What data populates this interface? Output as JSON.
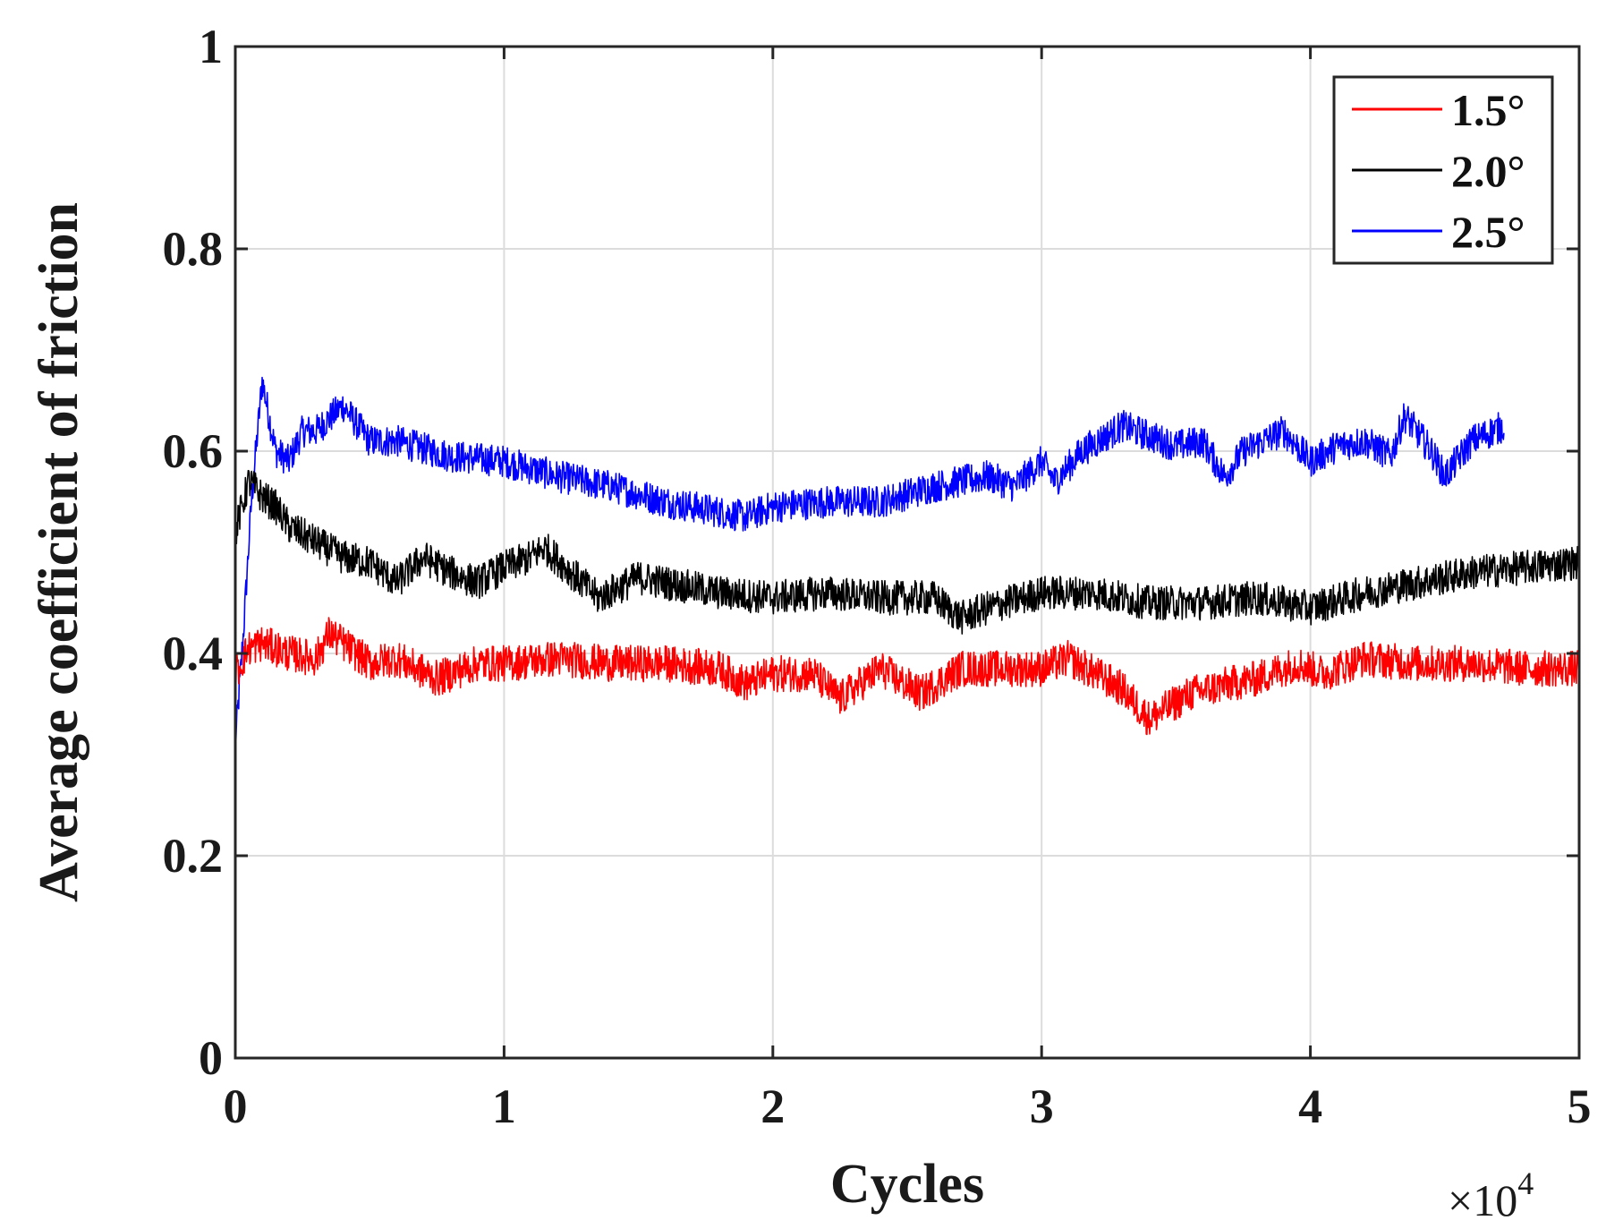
{
  "chart_data": {
    "type": "line",
    "xlabel": "Cycles",
    "ylabel": "Average coefficient of friction",
    "x_multiplier_label": "×10",
    "x_multiplier_exponent": "4",
    "xlim": [
      0,
      5
    ],
    "ylim": [
      0,
      1
    ],
    "x_ticks": [
      "0",
      "1",
      "2",
      "3",
      "4",
      "5"
    ],
    "y_ticks": [
      "0",
      "0.2",
      "0.4",
      "0.6",
      "0.8",
      "1"
    ],
    "grid": true,
    "legend_position": "top-right",
    "series": [
      {
        "name": "1.5°",
        "color": "#ff0000",
        "noise": 0.018,
        "x": [
          0,
          0.05,
          0.1,
          0.2,
          0.3,
          0.35,
          0.5,
          0.6,
          0.75,
          0.9,
          1.0,
          1.2,
          1.4,
          1.6,
          1.8,
          1.9,
          2.0,
          2.15,
          2.25,
          2.4,
          2.55,
          2.7,
          2.85,
          3.0,
          3.1,
          3.2,
          3.3,
          3.4,
          3.55,
          3.7,
          3.8,
          3.95,
          4.05,
          4.2,
          4.4,
          4.6,
          4.8,
          5.0
        ],
        "y": [
          0.38,
          0.405,
          0.41,
          0.4,
          0.395,
          0.42,
          0.39,
          0.395,
          0.375,
          0.39,
          0.39,
          0.395,
          0.39,
          0.39,
          0.385,
          0.37,
          0.38,
          0.38,
          0.355,
          0.385,
          0.36,
          0.385,
          0.385,
          0.385,
          0.395,
          0.38,
          0.365,
          0.335,
          0.36,
          0.37,
          0.375,
          0.39,
          0.38,
          0.395,
          0.39,
          0.39,
          0.385,
          0.385
        ]
      },
      {
        "name": "2.0°",
        "color": "#000000",
        "noise": 0.017,
        "x": [
          0,
          0.05,
          0.1,
          0.15,
          0.2,
          0.3,
          0.4,
          0.5,
          0.6,
          0.7,
          0.8,
          0.9,
          1.0,
          1.1,
          1.15,
          1.25,
          1.35,
          1.5,
          1.6,
          1.8,
          2.0,
          2.2,
          2.4,
          2.6,
          2.7,
          2.8,
          3.0,
          3.2,
          3.4,
          3.6,
          3.8,
          4.0,
          4.2,
          4.4,
          4.6,
          4.8,
          5.0
        ],
        "y": [
          0.52,
          0.57,
          0.555,
          0.545,
          0.525,
          0.51,
          0.495,
          0.49,
          0.47,
          0.495,
          0.48,
          0.47,
          0.485,
          0.495,
          0.505,
          0.48,
          0.455,
          0.475,
          0.47,
          0.46,
          0.455,
          0.46,
          0.455,
          0.455,
          0.435,
          0.445,
          0.46,
          0.46,
          0.45,
          0.45,
          0.455,
          0.445,
          0.46,
          0.47,
          0.48,
          0.485,
          0.49
        ]
      },
      {
        "name": "2.5°",
        "color": "#0000ff",
        "noise": 0.016,
        "x": [
          0,
          0.03,
          0.06,
          0.1,
          0.15,
          0.2,
          0.25,
          0.3,
          0.4,
          0.5,
          0.6,
          0.8,
          1.0,
          1.2,
          1.4,
          1.6,
          1.8,
          1.9,
          2.0,
          2.2,
          2.4,
          2.6,
          2.8,
          2.9,
          3.0,
          3.05,
          3.15,
          3.3,
          3.4,
          3.5,
          3.6,
          3.68,
          3.75,
          3.9,
          4.0,
          4.1,
          4.2,
          4.3,
          4.35,
          4.45,
          4.5,
          4.6,
          4.72
        ],
        "y": [
          0.31,
          0.42,
          0.55,
          0.67,
          0.6,
          0.59,
          0.62,
          0.62,
          0.645,
          0.61,
          0.61,
          0.595,
          0.59,
          0.575,
          0.565,
          0.55,
          0.54,
          0.535,
          0.545,
          0.55,
          0.55,
          0.565,
          0.575,
          0.565,
          0.59,
          0.57,
          0.6,
          0.625,
          0.615,
          0.605,
          0.61,
          0.575,
          0.6,
          0.62,
          0.59,
          0.605,
          0.61,
          0.595,
          0.635,
          0.6,
          0.575,
          0.61,
          0.625
        ]
      }
    ]
  }
}
